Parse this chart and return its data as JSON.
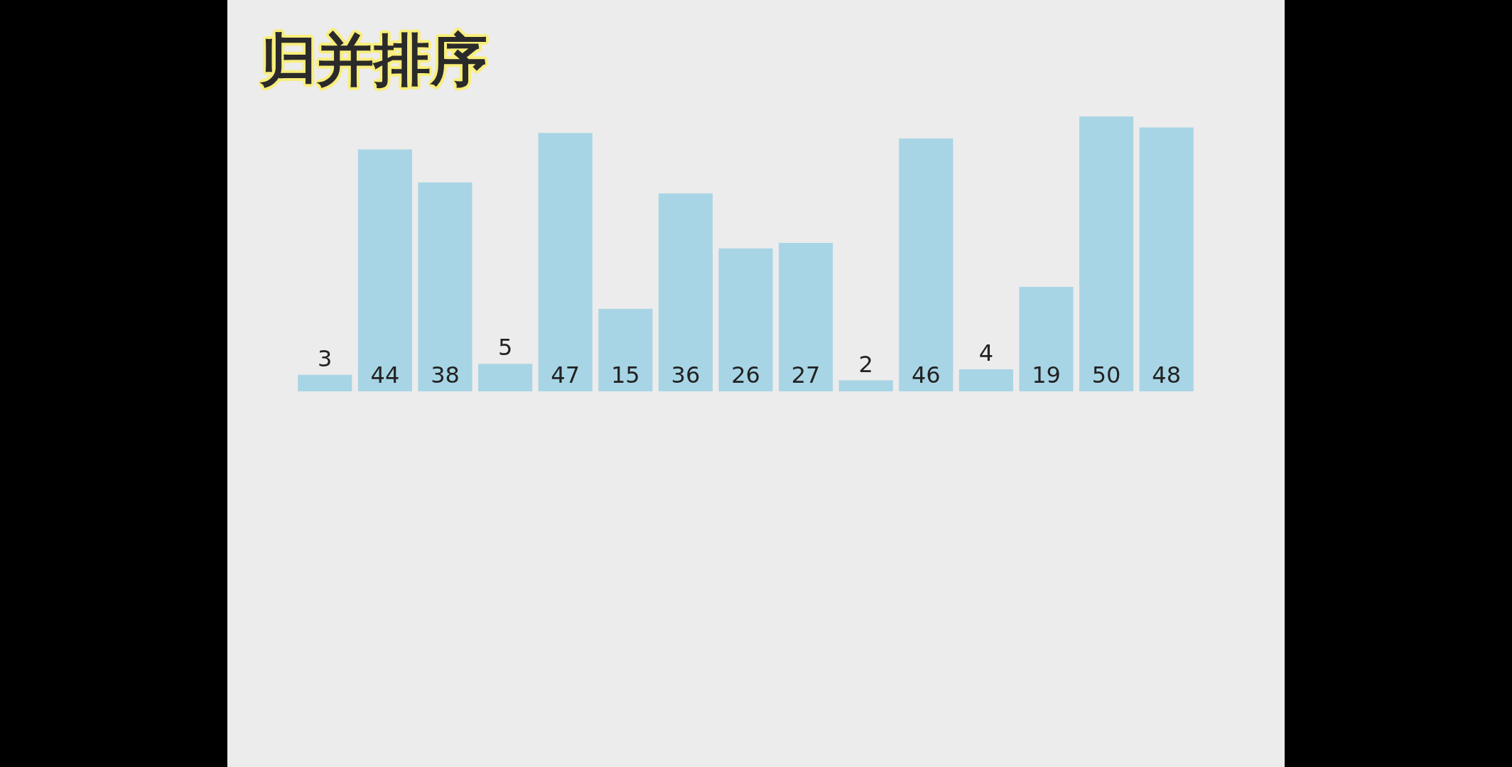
{
  "chart_data": {
    "type": "bar",
    "title": "归并排序",
    "categories": [
      null,
      null,
      null,
      null,
      null,
      null,
      null,
      null,
      null,
      null,
      null,
      null,
      null,
      null,
      null
    ],
    "values": [
      3,
      44,
      38,
      5,
      47,
      15,
      36,
      26,
      27,
      2,
      46,
      4,
      19,
      50,
      48
    ],
    "color": "#a8d5e5",
    "data_labels": true
  }
}
